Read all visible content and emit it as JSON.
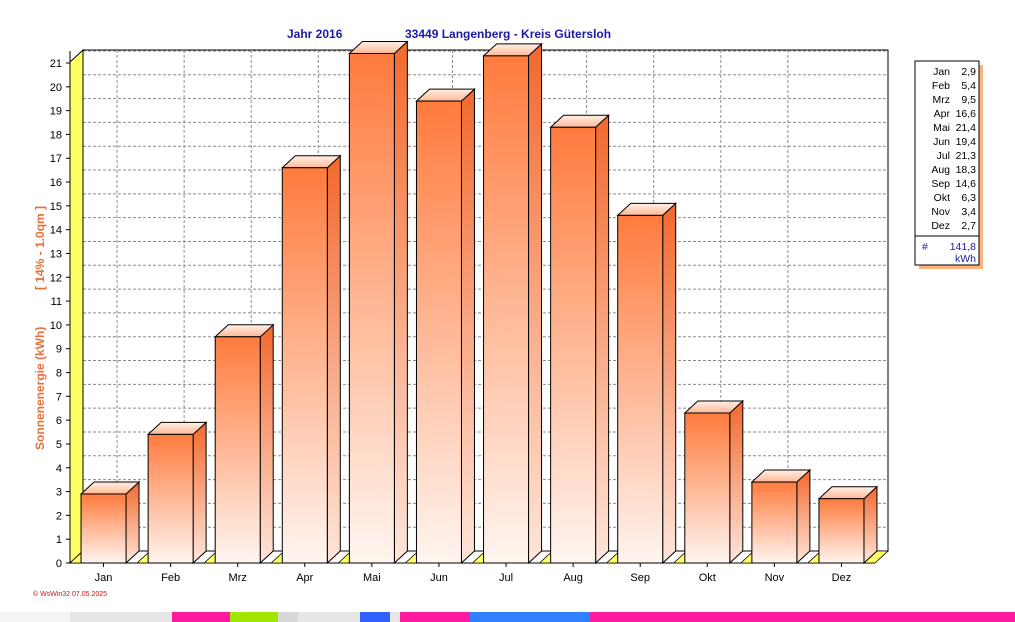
{
  "header": {
    "year_label": "Jahr  2016",
    "location_label": "33449 Langenberg - Kreis Gütersloh"
  },
  "chart_data": {
    "type": "bar",
    "categories": [
      "Jan",
      "Feb",
      "Mrz",
      "Apr",
      "Mai",
      "Jun",
      "Jul",
      "Aug",
      "Sep",
      "Okt",
      "Nov",
      "Dez"
    ],
    "values": [
      2.9,
      5.4,
      9.5,
      16.6,
      21.4,
      19.4,
      21.3,
      18.3,
      14.6,
      6.3,
      3.4,
      2.7
    ],
    "ylabel_left": "Sonnenenergie  (kWh)",
    "ylabel_right": "[ 14% - 1.0qm ]",
    "ylim": [
      0,
      21
    ],
    "yticks": [
      0,
      1,
      2,
      3,
      4,
      5,
      6,
      7,
      8,
      9,
      10,
      11,
      12,
      13,
      14,
      15,
      16,
      17,
      18,
      19,
      20,
      21
    ],
    "grid": true,
    "legend_placement": "right",
    "colors": {
      "bar_top": "#ff7b3d",
      "bar_bottom": "#fff5f0",
      "floor": "#ffff66",
      "title": "#1a1aa8",
      "ylabel": "#e8703a"
    }
  },
  "legend": {
    "rows": [
      {
        "month": "Jan",
        "value": "2,9"
      },
      {
        "month": "Feb",
        "value": "5,4"
      },
      {
        "month": "Mrz",
        "value": "9,5"
      },
      {
        "month": "Apr",
        "value": "16,6"
      },
      {
        "month": "Mai",
        "value": "21,4"
      },
      {
        "month": "Jun",
        "value": "19,4"
      },
      {
        "month": "Jul",
        "value": "21,3"
      },
      {
        "month": "Aug",
        "value": "18,3"
      },
      {
        "month": "Sep",
        "value": "14,6"
      },
      {
        "month": "Okt",
        "value": "6,3"
      },
      {
        "month": "Nov",
        "value": "3,4"
      },
      {
        "month": "Dez",
        "value": "2,7"
      }
    ],
    "total_symbol": "#",
    "total_value": "141,8",
    "total_unit": "kWh"
  },
  "footer": {
    "credit": "© WsWin32  07.05.2025"
  }
}
